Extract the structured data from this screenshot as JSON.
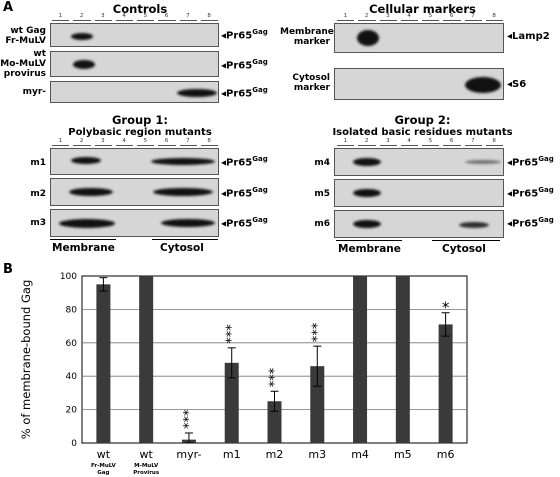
{
  "panel_a": {
    "letter": "A",
    "lanes": [
      "1",
      "2",
      "3",
      "4",
      "5",
      "6",
      "7",
      "8"
    ],
    "controls": {
      "title": "Controls",
      "rows": [
        {
          "label": "wt Gag\nFr-MuLV",
          "marker": "Pr65",
          "sup": "Gag"
        },
        {
          "label": "wt\nMo-MuLV\nprovirus",
          "marker": "Pr65",
          "sup": "Gag"
        },
        {
          "label": "myr-",
          "marker": "Pr65",
          "sup": "Gag"
        }
      ]
    },
    "cellular": {
      "title": "Cellular markers",
      "rows": [
        {
          "label": "Membrane\nmarker",
          "marker": "Lamp2"
        },
        {
          "label": "Cytosol\nmarker",
          "marker": "S6"
        }
      ]
    },
    "group1": {
      "title": "Group 1:",
      "subtitle": "Polybasic region mutants",
      "rows": [
        {
          "label": "m1",
          "marker": "Pr65",
          "sup": "Gag"
        },
        {
          "label": "m2",
          "marker": "Pr65",
          "sup": "Gag"
        },
        {
          "label": "m3",
          "marker": "Pr65",
          "sup": "Gag"
        }
      ],
      "membrane": "Membrane",
      "cytosol": "Cytosol"
    },
    "group2": {
      "title": "Group 2:",
      "subtitle": "Isolated basic residues mutants",
      "rows": [
        {
          "label": "m4",
          "marker": "Pr65",
          "sup": "Gag"
        },
        {
          "label": "m5",
          "marker": "Pr65",
          "sup": "Gag"
        },
        {
          "label": "m6",
          "marker": "Pr65",
          "sup": "Gag"
        }
      ],
      "membrane": "Membrane",
      "cytosol": "Cytosol"
    }
  },
  "panel_b": {
    "letter": "B"
  },
  "chart_data": {
    "type": "bar",
    "ylabel": "% of membrane-bound Gag",
    "ylim": [
      0,
      100
    ],
    "yticks": [
      0,
      20,
      40,
      60,
      80,
      100
    ],
    "grid": true,
    "categories": [
      "wt",
      "wt",
      "myr-",
      "m1",
      "m2",
      "m3",
      "m4",
      "m5",
      "m6"
    ],
    "category_sublabels": [
      "Fr-MuLV\nGag",
      "M-MuLV\nProvirus",
      "",
      "",
      "",
      "",
      "",
      "",
      ""
    ],
    "values": [
      95,
      100,
      2,
      48,
      25,
      46,
      100,
      100,
      71
    ],
    "errors": [
      4,
      0,
      4,
      9,
      6,
      12,
      0,
      0,
      7
    ],
    "significance": [
      "",
      "",
      "***",
      "***",
      "***",
      "***",
      "",
      "",
      "*"
    ]
  }
}
